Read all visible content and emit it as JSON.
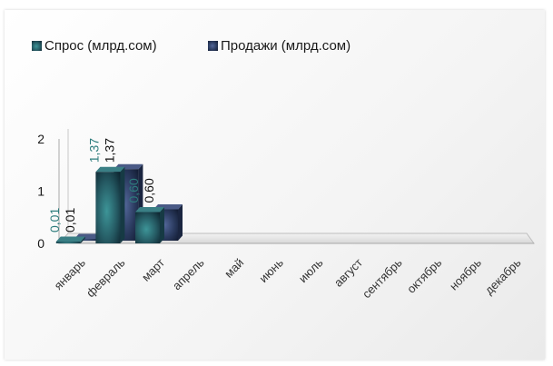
{
  "chart_data": {
    "type": "bar",
    "categories": [
      "январь",
      "февраль",
      "март",
      "апрель",
      "май",
      "июнь",
      "июль",
      "август",
      "сентябрь",
      "октябрь",
      "ноябрь",
      "декабрь"
    ],
    "series": [
      {
        "name": "Спрос (млрд.сом)",
        "values": [
          0.01,
          1.37,
          0.6,
          null,
          null,
          null,
          null,
          null,
          null,
          null,
          null,
          null
        ],
        "labels": [
          "0,01",
          "1,37",
          "0,60"
        ],
        "color": "#2e6b70"
      },
      {
        "name": "Продажи (млрд.сом)",
        "values": [
          0.01,
          1.37,
          0.6,
          null,
          null,
          null,
          null,
          null,
          null,
          null,
          null,
          null
        ],
        "labels": [
          "0,01",
          "1,37",
          "0,60"
        ],
        "color": "#2a3a5e"
      }
    ],
    "y_ticks": [
      "0",
      "1",
      "2"
    ],
    "ylim": [
      0,
      2
    ],
    "legend_position": "top-left",
    "grid": false
  }
}
